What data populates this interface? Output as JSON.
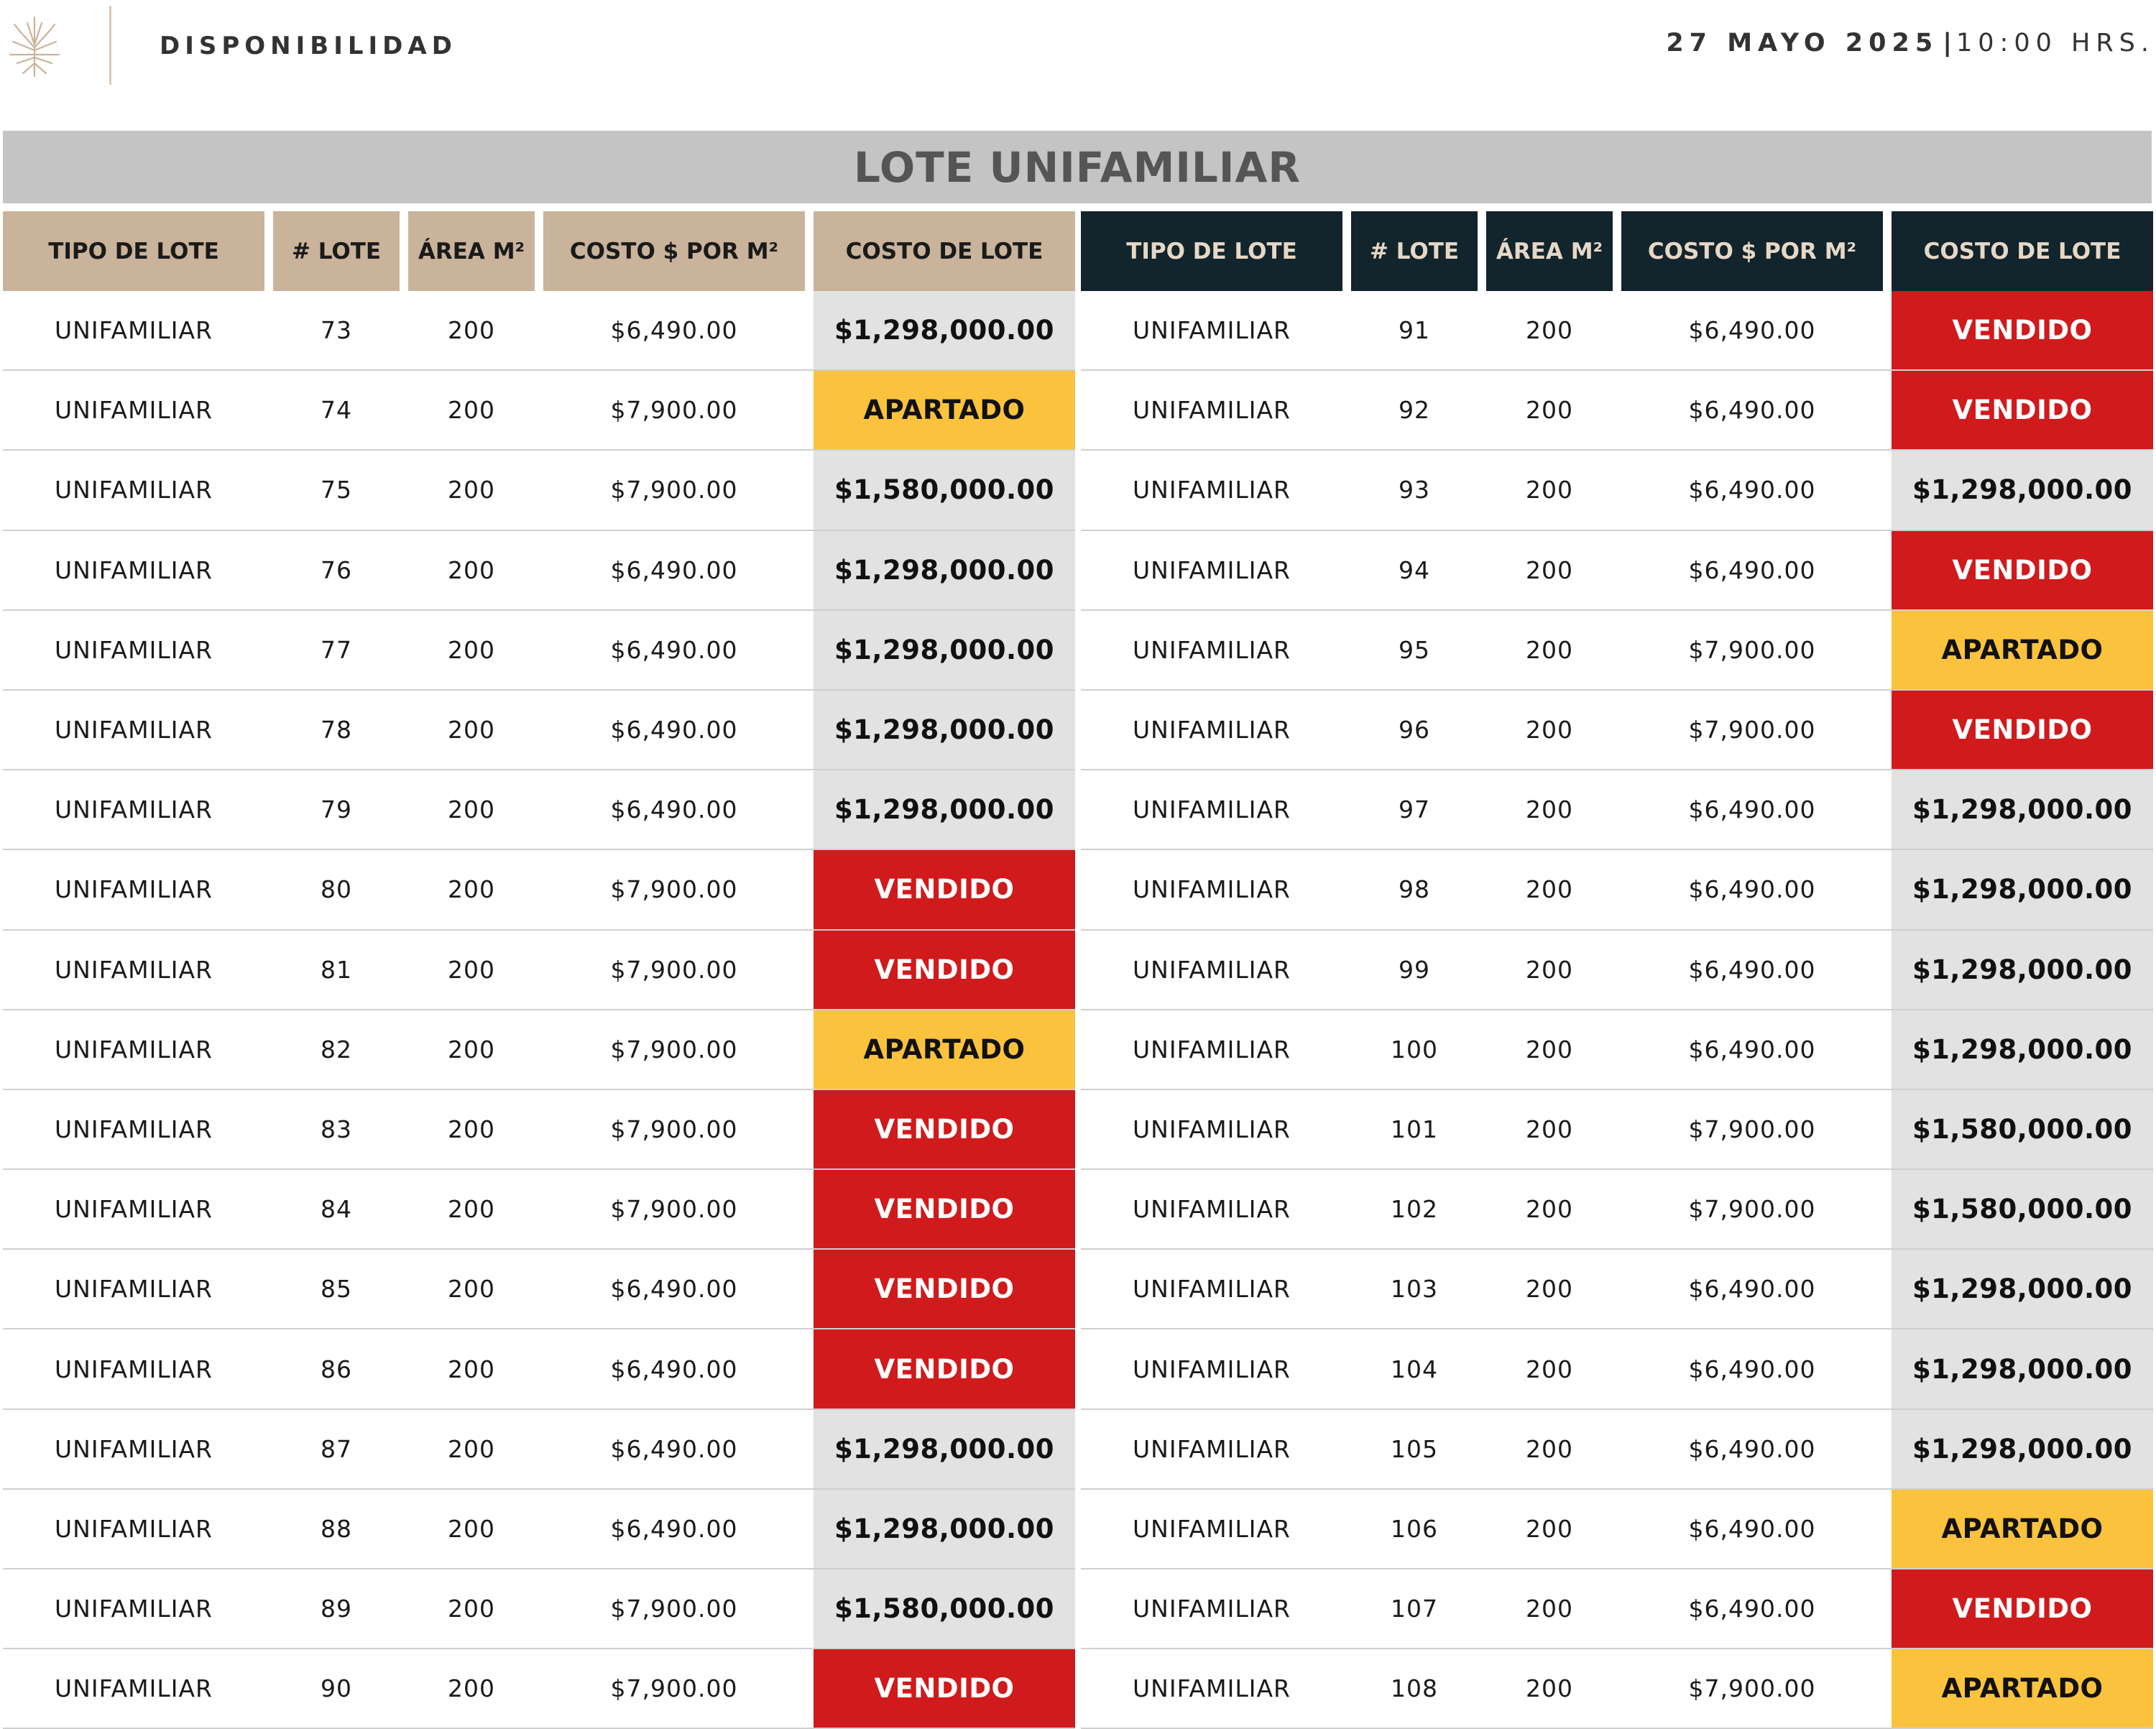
{
  "header": {
    "title": "DISPONIBILIDAD",
    "date": "27 MAYO 2025",
    "separator": "|",
    "time": "10:00 HRS."
  },
  "banner": "LOTE UNIFAMILIAR",
  "columns": [
    "TIPO DE LOTE",
    "# LOTE",
    "ÁREA M²",
    "COSTO $ POR M²",
    "COSTO DE LOTE"
  ],
  "colors": {
    "left_header": "#c9b39a",
    "right_header": "#12242c",
    "price": "#e2e2e2",
    "vendido": "#d01a1b",
    "apartado": "#fbc23e"
  },
  "left_rows": [
    {
      "tipo": "UNIFAMILIAR",
      "lote": "73",
      "area": "200",
      "costo_m2": "$6,490.00",
      "costo_lote": "$1,298,000.00",
      "status": "price"
    },
    {
      "tipo": "UNIFAMILIAR",
      "lote": "74",
      "area": "200",
      "costo_m2": "$7,900.00",
      "costo_lote": "APARTADO",
      "status": "apartado"
    },
    {
      "tipo": "UNIFAMILIAR",
      "lote": "75",
      "area": "200",
      "costo_m2": "$7,900.00",
      "costo_lote": "$1,580,000.00",
      "status": "price"
    },
    {
      "tipo": "UNIFAMILIAR",
      "lote": "76",
      "area": "200",
      "costo_m2": "$6,490.00",
      "costo_lote": "$1,298,000.00",
      "status": "price"
    },
    {
      "tipo": "UNIFAMILIAR",
      "lote": "77",
      "area": "200",
      "costo_m2": "$6,490.00",
      "costo_lote": "$1,298,000.00",
      "status": "price"
    },
    {
      "tipo": "UNIFAMILIAR",
      "lote": "78",
      "area": "200",
      "costo_m2": "$6,490.00",
      "costo_lote": "$1,298,000.00",
      "status": "price"
    },
    {
      "tipo": "UNIFAMILIAR",
      "lote": "79",
      "area": "200",
      "costo_m2": "$6,490.00",
      "costo_lote": "$1,298,000.00",
      "status": "price"
    },
    {
      "tipo": "UNIFAMILIAR",
      "lote": "80",
      "area": "200",
      "costo_m2": "$7,900.00",
      "costo_lote": "VENDIDO",
      "status": "vendido"
    },
    {
      "tipo": "UNIFAMILIAR",
      "lote": "81",
      "area": "200",
      "costo_m2": "$7,900.00",
      "costo_lote": "VENDIDO",
      "status": "vendido"
    },
    {
      "tipo": "UNIFAMILIAR",
      "lote": "82",
      "area": "200",
      "costo_m2": "$7,900.00",
      "costo_lote": "APARTADO",
      "status": "apartado"
    },
    {
      "tipo": "UNIFAMILIAR",
      "lote": "83",
      "area": "200",
      "costo_m2": "$7,900.00",
      "costo_lote": "VENDIDO",
      "status": "vendido"
    },
    {
      "tipo": "UNIFAMILIAR",
      "lote": "84",
      "area": "200",
      "costo_m2": "$7,900.00",
      "costo_lote": "VENDIDO",
      "status": "vendido"
    },
    {
      "tipo": "UNIFAMILIAR",
      "lote": "85",
      "area": "200",
      "costo_m2": "$6,490.00",
      "costo_lote": "VENDIDO",
      "status": "vendido"
    },
    {
      "tipo": "UNIFAMILIAR",
      "lote": "86",
      "area": "200",
      "costo_m2": "$6,490.00",
      "costo_lote": "VENDIDO",
      "status": "vendido"
    },
    {
      "tipo": "UNIFAMILIAR",
      "lote": "87",
      "area": "200",
      "costo_m2": "$6,490.00",
      "costo_lote": "$1,298,000.00",
      "status": "price"
    },
    {
      "tipo": "UNIFAMILIAR",
      "lote": "88",
      "area": "200",
      "costo_m2": "$6,490.00",
      "costo_lote": "$1,298,000.00",
      "status": "price"
    },
    {
      "tipo": "UNIFAMILIAR",
      "lote": "89",
      "area": "200",
      "costo_m2": "$7,900.00",
      "costo_lote": "$1,580,000.00",
      "status": "price"
    },
    {
      "tipo": "UNIFAMILIAR",
      "lote": "90",
      "area": "200",
      "costo_m2": "$7,900.00",
      "costo_lote": "VENDIDO",
      "status": "vendido"
    }
  ],
  "right_rows": [
    {
      "tipo": "UNIFAMILIAR",
      "lote": "91",
      "area": "200",
      "costo_m2": "$6,490.00",
      "costo_lote": "VENDIDO",
      "status": "vendido"
    },
    {
      "tipo": "UNIFAMILIAR",
      "lote": "92",
      "area": "200",
      "costo_m2": "$6,490.00",
      "costo_lote": "VENDIDO",
      "status": "vendido"
    },
    {
      "tipo": "UNIFAMILIAR",
      "lote": "93",
      "area": "200",
      "costo_m2": "$6,490.00",
      "costo_lote": "$1,298,000.00",
      "status": "price"
    },
    {
      "tipo": "UNIFAMILIAR",
      "lote": "94",
      "area": "200",
      "costo_m2": "$6,490.00",
      "costo_lote": "VENDIDO",
      "status": "vendido"
    },
    {
      "tipo": "UNIFAMILIAR",
      "lote": "95",
      "area": "200",
      "costo_m2": "$7,900.00",
      "costo_lote": "APARTADO",
      "status": "apartado"
    },
    {
      "tipo": "UNIFAMILIAR",
      "lote": "96",
      "area": "200",
      "costo_m2": "$7,900.00",
      "costo_lote": "VENDIDO",
      "status": "vendido"
    },
    {
      "tipo": "UNIFAMILIAR",
      "lote": "97",
      "area": "200",
      "costo_m2": "$6,490.00",
      "costo_lote": "$1,298,000.00",
      "status": "price"
    },
    {
      "tipo": "UNIFAMILIAR",
      "lote": "98",
      "area": "200",
      "costo_m2": "$6,490.00",
      "costo_lote": "$1,298,000.00",
      "status": "price"
    },
    {
      "tipo": "UNIFAMILIAR",
      "lote": "99",
      "area": "200",
      "costo_m2": "$6,490.00",
      "costo_lote": "$1,298,000.00",
      "status": "price"
    },
    {
      "tipo": "UNIFAMILIAR",
      "lote": "100",
      "area": "200",
      "costo_m2": "$6,490.00",
      "costo_lote": "$1,298,000.00",
      "status": "price"
    },
    {
      "tipo": "UNIFAMILIAR",
      "lote": "101",
      "area": "200",
      "costo_m2": "$7,900.00",
      "costo_lote": "$1,580,000.00",
      "status": "price"
    },
    {
      "tipo": "UNIFAMILIAR",
      "lote": "102",
      "area": "200",
      "costo_m2": "$7,900.00",
      "costo_lote": "$1,580,000.00",
      "status": "price"
    },
    {
      "tipo": "UNIFAMILIAR",
      "lote": "103",
      "area": "200",
      "costo_m2": "$6,490.00",
      "costo_lote": "$1,298,000.00",
      "status": "price"
    },
    {
      "tipo": "UNIFAMILIAR",
      "lote": "104",
      "area": "200",
      "costo_m2": "$6,490.00",
      "costo_lote": "$1,298,000.00",
      "status": "price"
    },
    {
      "tipo": "UNIFAMILIAR",
      "lote": "105",
      "area": "200",
      "costo_m2": "$6,490.00",
      "costo_lote": "$1,298,000.00",
      "status": "price"
    },
    {
      "tipo": "UNIFAMILIAR",
      "lote": "106",
      "area": "200",
      "costo_m2": "$6,490.00",
      "costo_lote": "APARTADO",
      "status": "apartado"
    },
    {
      "tipo": "UNIFAMILIAR",
      "lote": "107",
      "area": "200",
      "costo_m2": "$6,490.00",
      "costo_lote": "VENDIDO",
      "status": "vendido"
    },
    {
      "tipo": "UNIFAMILIAR",
      "lote": "108",
      "area": "200",
      "costo_m2": "$7,900.00",
      "costo_lote": "APARTADO",
      "status": "apartado"
    }
  ]
}
